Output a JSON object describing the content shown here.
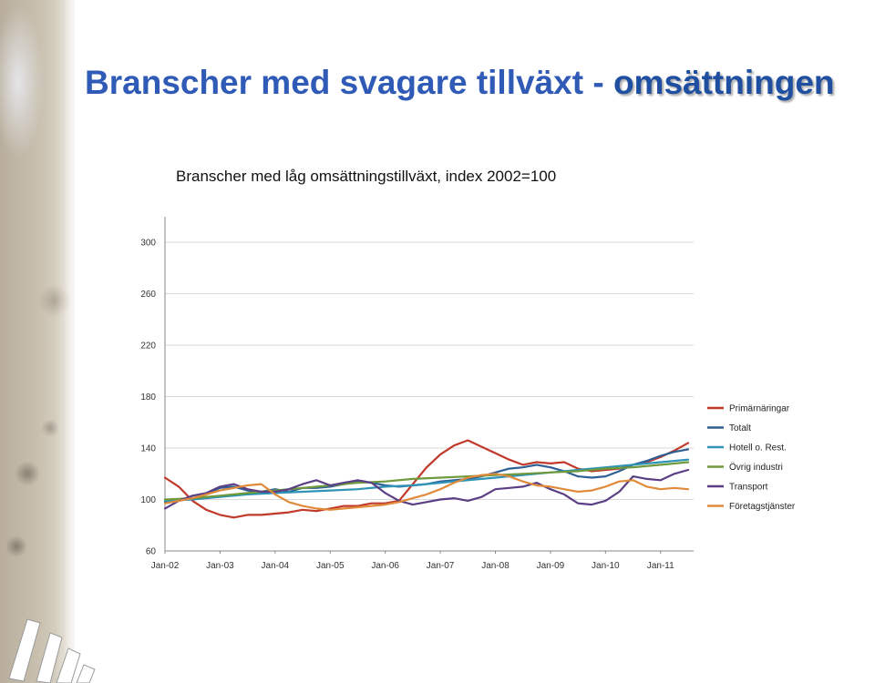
{
  "page": {
    "title_plain": "Branscher med svagare tillväxt - ",
    "title_emphasis": "omsättningen"
  },
  "chart_data": {
    "type": "line",
    "title": "Branscher med låg omsättningstillväxt, index 2002=100",
    "xlabel": "",
    "ylabel": "",
    "ylim": [
      60,
      300
    ],
    "yticks": [
      60,
      100,
      140,
      180,
      220,
      260,
      300
    ],
    "xlim": [
      2002.0,
      2011.6
    ],
    "xtick_labels": [
      "Jan-02",
      "Jan-03",
      "Jan-04",
      "Jan-05",
      "Jan-06",
      "Jan-07",
      "Jan-08",
      "Jan-09",
      "Jan-10",
      "Jan-11"
    ],
    "grid": true,
    "legend_position": "right",
    "colors": {
      "primarnaringar": "#c0392b",
      "totalt": "#2e5f95",
      "hotell": "#2f93b5",
      "ovrig": "#6e9a3c",
      "transport": "#5b3f85",
      "foretag": "#e08a3a"
    },
    "series": [
      {
        "name": "Primärnäringar",
        "color": "#c0392b",
        "x": [
          2002.0,
          2002.25,
          2002.5,
          2002.75,
          2003.0,
          2003.25,
          2003.5,
          2003.75,
          2004.0,
          2004.25,
          2004.5,
          2004.75,
          2005.0,
          2005.25,
          2005.5,
          2005.75,
          2006.0,
          2006.25,
          2006.5,
          2006.75,
          2007.0,
          2007.25,
          2007.5,
          2007.75,
          2008.0,
          2008.25,
          2008.5,
          2008.75,
          2009.0,
          2009.25,
          2009.5,
          2009.75,
          2010.0,
          2010.25,
          2010.5,
          2010.75,
          2011.0,
          2011.25,
          2011.5
        ],
        "y": [
          117,
          110,
          99,
          92,
          88,
          86,
          88,
          88,
          89,
          90,
          92,
          91,
          93,
          95,
          95,
          97,
          97,
          99,
          112,
          125,
          135,
          142,
          146,
          141,
          136,
          131,
          127,
          129,
          128,
          129,
          124,
          122,
          123,
          124,
          127,
          129,
          133,
          138,
          144
        ]
      },
      {
        "name": "Totalt",
        "color": "#2e5f95",
        "x": [
          2002.0,
          2002.25,
          2002.5,
          2002.75,
          2003.0,
          2003.25,
          2003.5,
          2003.75,
          2004.0,
          2004.25,
          2004.5,
          2004.75,
          2005.0,
          2005.25,
          2005.5,
          2005.75,
          2006.0,
          2006.25,
          2006.5,
          2006.75,
          2007.0,
          2007.25,
          2007.5,
          2007.75,
          2008.0,
          2008.25,
          2008.5,
          2008.75,
          2009.0,
          2009.25,
          2009.5,
          2009.75,
          2010.0,
          2010.25,
          2010.5,
          2010.75,
          2011.0,
          2011.25,
          2011.5
        ],
        "y": [
          98,
          99,
          101,
          104,
          109,
          110,
          107,
          106,
          108,
          106,
          109,
          109,
          110,
          112,
          114,
          113,
          111,
          110,
          111,
          112,
          114,
          115,
          116,
          118,
          121,
          124,
          125,
          127,
          125,
          122,
          118,
          117,
          118,
          122,
          127,
          130,
          134,
          137,
          139
        ]
      },
      {
        "name": "Hotell o. Rest.",
        "color": "#2f93b5",
        "x": [
          2002.0,
          2002.5,
          2003.0,
          2003.5,
          2004.0,
          2004.5,
          2005.0,
          2005.5,
          2006.0,
          2006.5,
          2007.0,
          2007.5,
          2008.0,
          2008.5,
          2009.0,
          2009.5,
          2010.0,
          2010.5,
          2011.0,
          2011.5
        ],
        "y": [
          99,
          100,
          102,
          104,
          105,
          106,
          107,
          108,
          110,
          111,
          113,
          115,
          117,
          119,
          121,
          123,
          125,
          127,
          129,
          131
        ]
      },
      {
        "name": "Övrig industri",
        "color": "#6e9a3c",
        "x": [
          2002.0,
          2002.5,
          2003.0,
          2003.5,
          2004.0,
          2004.5,
          2005.0,
          2005.5,
          2006.0,
          2006.5,
          2007.0,
          2007.5,
          2008.0,
          2008.5,
          2009.0,
          2009.5,
          2010.0,
          2010.5,
          2011.0,
          2011.5
        ],
        "y": [
          100,
          101,
          103,
          105,
          107,
          109,
          111,
          113,
          114,
          116,
          117,
          118,
          119,
          120,
          121,
          122,
          124,
          125,
          127,
          129
        ]
      },
      {
        "name": "Transport",
        "color": "#5b3f85",
        "x": [
          2002.0,
          2002.25,
          2002.5,
          2002.75,
          2003.0,
          2003.25,
          2003.5,
          2003.75,
          2004.0,
          2004.25,
          2004.5,
          2004.75,
          2005.0,
          2005.25,
          2005.5,
          2005.75,
          2006.0,
          2006.25,
          2006.5,
          2006.75,
          2007.0,
          2007.25,
          2007.5,
          2007.75,
          2008.0,
          2008.25,
          2008.5,
          2008.75,
          2009.0,
          2009.25,
          2009.5,
          2009.75,
          2010.0,
          2010.25,
          2010.5,
          2010.75,
          2011.0,
          2011.25,
          2011.5
        ],
        "y": [
          93,
          99,
          103,
          105,
          110,
          112,
          108,
          106,
          106,
          108,
          112,
          115,
          111,
          113,
          115,
          113,
          105,
          99,
          96,
          98,
          100,
          101,
          99,
          102,
          108,
          109,
          110,
          113,
          108,
          104,
          97,
          96,
          99,
          106,
          118,
          116,
          115,
          120,
          123
        ]
      },
      {
        "name": "Företagstjänster",
        "color": "#e08a3a",
        "x": [
          2002.0,
          2002.25,
          2002.5,
          2002.75,
          2003.0,
          2003.25,
          2003.5,
          2003.75,
          2004.0,
          2004.25,
          2004.5,
          2004.75,
          2005.0,
          2005.25,
          2005.5,
          2005.75,
          2006.0,
          2006.25,
          2006.5,
          2006.75,
          2007.0,
          2007.25,
          2007.5,
          2007.75,
          2008.0,
          2008.25,
          2008.5,
          2008.75,
          2009.0,
          2009.25,
          2009.5,
          2009.75,
          2010.0,
          2010.25,
          2010.5,
          2010.75,
          2011.0,
          2011.25,
          2011.5
        ],
        "y": [
          97,
          99,
          101,
          104,
          107,
          109,
          111,
          112,
          104,
          98,
          95,
          93,
          92,
          93,
          94,
          95,
          96,
          98,
          101,
          104,
          108,
          113,
          117,
          119,
          120,
          118,
          114,
          111,
          110,
          108,
          106,
          107,
          110,
          114,
          115,
          110,
          108,
          109,
          108
        ]
      }
    ]
  }
}
